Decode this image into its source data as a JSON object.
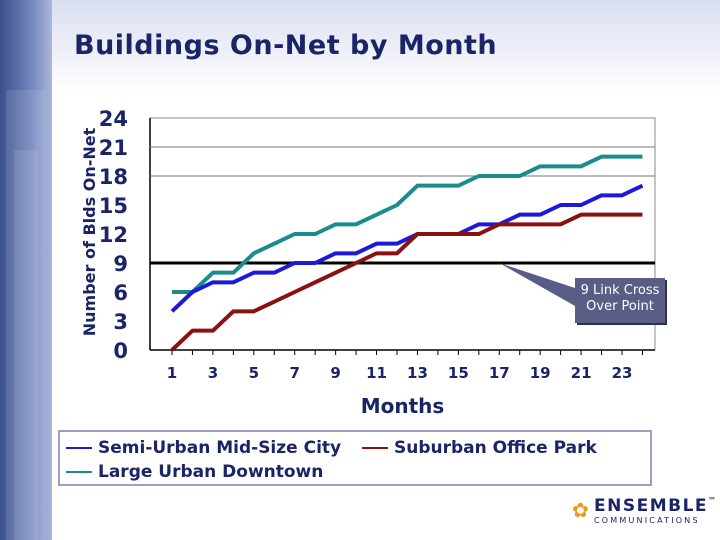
{
  "slide": {
    "title": "Buildings On-Net by Month"
  },
  "chart_data": {
    "type": "line",
    "title": "Buildings On-Net by Month",
    "xlabel": "Months",
    "ylabel": "Number of Blds On-Net",
    "x": [
      1,
      2,
      3,
      4,
      5,
      6,
      7,
      8,
      9,
      10,
      11,
      12,
      13,
      14,
      15,
      16,
      17,
      18,
      19,
      20,
      21,
      22,
      23,
      24
    ],
    "x_ticks": [
      "1",
      "3",
      "5",
      "7",
      "9",
      "11",
      "13",
      "15",
      "17",
      "19",
      "21",
      "23"
    ],
    "y_ticks": [
      "0",
      "3",
      "6",
      "9",
      "12",
      "15",
      "18",
      "21",
      "24"
    ],
    "ylim": [
      0,
      24
    ],
    "xlim": [
      1,
      24
    ],
    "grid": "horizontal at 9, 18, 21",
    "series": [
      {
        "name": "Semi-Urban Mid-Size City",
        "color": "#1a1ad8",
        "values": [
          4,
          6,
          7,
          7,
          8,
          8,
          9,
          9,
          10,
          10,
          11,
          11,
          12,
          12,
          12,
          13,
          13,
          14,
          14,
          15,
          15,
          16,
          16,
          17
        ]
      },
      {
        "name": "Suburban Office Park",
        "color": "#8b1010",
        "values": [
          0,
          2,
          2,
          4,
          4,
          5,
          6,
          7,
          8,
          9,
          10,
          10,
          12,
          12,
          12,
          12,
          13,
          13,
          13,
          13,
          14,
          14,
          14,
          14
        ]
      },
      {
        "name": "Large Urban Downtown",
        "color": "#1a8c8c",
        "values": [
          6,
          6,
          8,
          8,
          10,
          11,
          12,
          12,
          13,
          13,
          14,
          15,
          17,
          17,
          17,
          18,
          18,
          18,
          19,
          19,
          19,
          20,
          20,
          20
        ]
      }
    ],
    "reference_line": {
      "value": 9,
      "color": "#000000"
    },
    "annotation": {
      "text_line1": "9 Link Cross",
      "text_line2": "Over Point",
      "x": 17,
      "y": 9
    }
  },
  "legend": {
    "items": [
      {
        "label": "Semi-Urban Mid-Size City",
        "color": "#1a1ad8"
      },
      {
        "label": "Suburban Office Park",
        "color": "#8b1010"
      },
      {
        "label": "Large Urban Downtown",
        "color": "#1a8c8c"
      }
    ]
  },
  "logo": {
    "name": "ENSEMBLE",
    "tm": "™",
    "sub": "COMMUNICATIONS",
    "mark_icon": "flower-icon"
  }
}
